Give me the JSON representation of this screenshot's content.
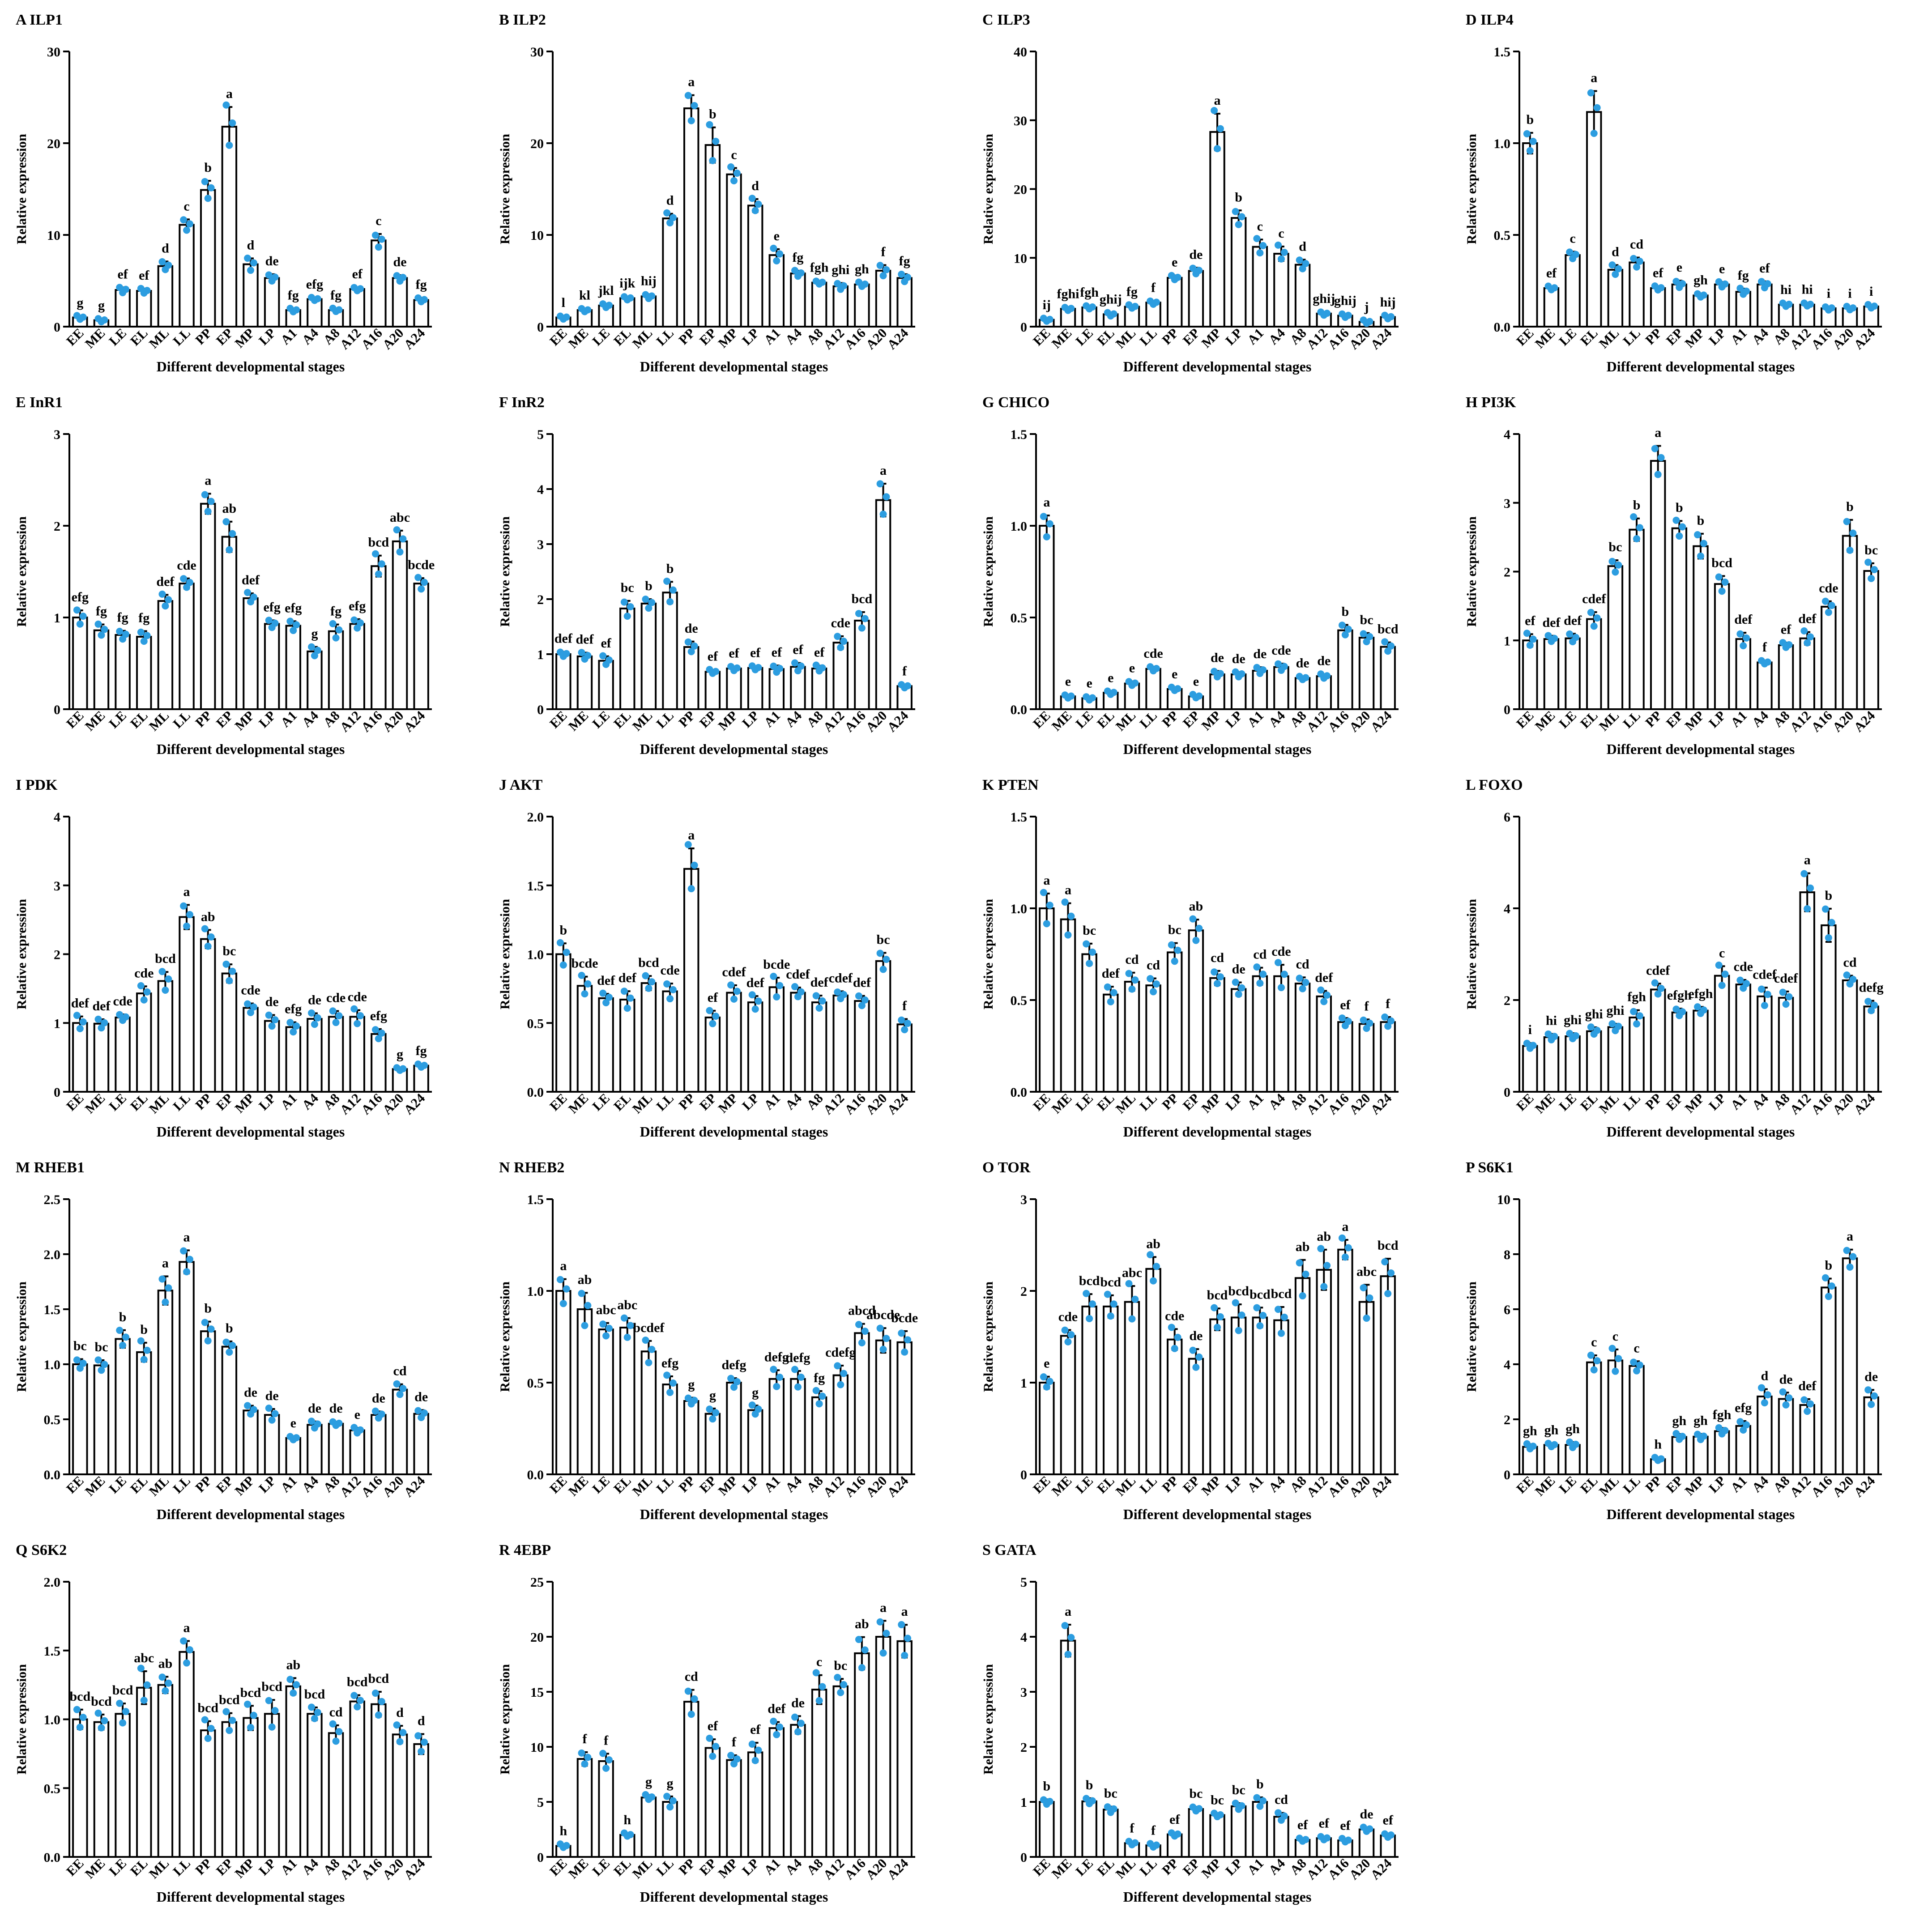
{
  "figure": {
    "xlabel": "Different developmental stages",
    "ylabel": "Relative expression",
    "colors": {
      "bar_fill": "#ffffff",
      "bar_stroke": "#000000",
      "dot": "#2c9de0",
      "text": "#000000"
    }
  },
  "chart_data": [
    {
      "panel": "A",
      "title": "A ILP1",
      "type": "bar",
      "categories": [
        "EE",
        "ME",
        "LE",
        "EL",
        "ML",
        "LL",
        "PP",
        "EP",
        "MP",
        "LP",
        "A1",
        "A4",
        "A8",
        "A12",
        "A16",
        "A20",
        "A24"
      ],
      "values": [
        1.0,
        0.7,
        4.0,
        3.9,
        6.6,
        11.1,
        14.9,
        21.8,
        6.8,
        5.3,
        1.8,
        3.0,
        1.8,
        4.1,
        9.4,
        5.3,
        2.9
      ],
      "letters": [
        "g",
        "g",
        "ef",
        "ef",
        "d",
        "c",
        "b",
        "a",
        "d",
        "de",
        "fg",
        "efg",
        "fg",
        "ef",
        "c",
        "de",
        "fg"
      ],
      "ylim": [
        0,
        30
      ],
      "yticks": [
        0,
        10,
        20,
        30
      ]
    },
    {
      "panel": "B",
      "title": "B ILP2",
      "type": "bar",
      "categories": [
        "EE",
        "ME",
        "LE",
        "EL",
        "ML",
        "LL",
        "PP",
        "EP",
        "MP",
        "LP",
        "A1",
        "A4",
        "A8",
        "A12",
        "A16",
        "A20",
        "A24"
      ],
      "values": [
        1.0,
        1.8,
        2.3,
        3.1,
        3.3,
        11.8,
        23.8,
        19.8,
        16.6,
        13.2,
        7.8,
        5.8,
        4.8,
        4.4,
        4.6,
        6.1,
        5.3
      ],
      "letters": [
        "l",
        "kl",
        "jkl",
        "ijk",
        "hij",
        "d",
        "a",
        "b",
        "c",
        "d",
        "e",
        "fg",
        "fgh",
        "ghi",
        "gh",
        "f",
        "fg"
      ],
      "ylim": [
        0,
        30
      ],
      "yticks": [
        0,
        10,
        20,
        30
      ]
    },
    {
      "panel": "C",
      "title": "C ILP3",
      "type": "bar",
      "categories": [
        "EE",
        "ME",
        "LE",
        "EL",
        "ML",
        "LL",
        "PP",
        "EP",
        "MP",
        "LP",
        "A1",
        "A4",
        "A8",
        "A12",
        "A16",
        "A20",
        "A24"
      ],
      "values": [
        1.0,
        2.6,
        2.8,
        1.8,
        2.9,
        3.5,
        7.1,
        8.1,
        28.3,
        15.8,
        11.6,
        10.6,
        9.0,
        1.9,
        1.6,
        0.7,
        1.4
      ],
      "letters": [
        "ij",
        "fghi",
        "fgh",
        "ghij",
        "fg",
        "f",
        "e",
        "de",
        "a",
        "b",
        "c",
        "c",
        "d",
        "ghij",
        "ghij",
        "j",
        "hij"
      ],
      "ylim": [
        0,
        40
      ],
      "yticks": [
        0,
        10,
        20,
        30,
        40
      ]
    },
    {
      "panel": "D",
      "title": "D ILP4",
      "type": "bar",
      "categories": [
        "EE",
        "ME",
        "LE",
        "EL",
        "ML",
        "LL",
        "PP",
        "EP",
        "MP",
        "LP",
        "A1",
        "A4",
        "A8",
        "A12",
        "A16",
        "A20",
        "A24"
      ],
      "values": [
        1.0,
        0.21,
        0.39,
        1.17,
        0.31,
        0.35,
        0.21,
        0.23,
        0.17,
        0.23,
        0.19,
        0.23,
        0.12,
        0.12,
        0.1,
        0.1,
        0.11
      ],
      "letters": [
        "b",
        "ef",
        "c",
        "a",
        "d",
        "cd",
        "ef",
        "e",
        "gh",
        "e",
        "fg",
        "ef",
        "hi",
        "hi",
        "i",
        "i",
        "i"
      ],
      "ylim": [
        0,
        1.5
      ],
      "yticks": [
        0.0,
        0.5,
        1.0,
        1.5
      ]
    },
    {
      "panel": "E",
      "title": "E InR1",
      "type": "bar",
      "categories": [
        "EE",
        "ME",
        "LE",
        "EL",
        "ML",
        "LL",
        "PP",
        "EP",
        "MP",
        "LP",
        "A1",
        "A4",
        "A8",
        "A12",
        "A16",
        "A20",
        "A24"
      ],
      "values": [
        1.0,
        0.86,
        0.81,
        0.79,
        1.18,
        1.37,
        2.24,
        1.88,
        1.21,
        0.93,
        0.91,
        0.63,
        0.85,
        0.93,
        1.56,
        1.83,
        1.37
      ],
      "letters": [
        "efg",
        "fg",
        "fg",
        "fg",
        "def",
        "cde",
        "a",
        "ab",
        "def",
        "efg",
        "efg",
        "g",
        "fg",
        "efg",
        "bcd",
        "abc",
        "bcde"
      ],
      "ylim": [
        0,
        3
      ],
      "yticks": [
        0,
        1,
        2,
        3
      ]
    },
    {
      "panel": "F",
      "title": "F InR2",
      "type": "bar",
      "categories": [
        "EE",
        "ME",
        "LE",
        "EL",
        "ML",
        "LL",
        "PP",
        "EP",
        "MP",
        "LP",
        "A1",
        "A4",
        "A8",
        "A12",
        "A16",
        "A20",
        "A24"
      ],
      "values": [
        1.0,
        0.96,
        0.88,
        1.83,
        1.92,
        2.12,
        1.13,
        0.68,
        0.74,
        0.75,
        0.73,
        0.77,
        0.74,
        1.21,
        1.61,
        3.8,
        0.42
      ],
      "letters": [
        "def",
        "def",
        "ef",
        "bc",
        "b",
        "b",
        "de",
        "ef",
        "ef",
        "ef",
        "ef",
        "ef",
        "ef",
        "cde",
        "bcd",
        "a",
        "f"
      ],
      "ylim": [
        0,
        5
      ],
      "yticks": [
        0,
        1,
        2,
        3,
        4,
        5
      ]
    },
    {
      "panel": "G",
      "title": "G CHICO",
      "type": "bar",
      "categories": [
        "EE",
        "ME",
        "LE",
        "EL",
        "ML",
        "LL",
        "PP",
        "EP",
        "MP",
        "LP",
        "A1",
        "A4",
        "A8",
        "A12",
        "A16",
        "A20",
        "A24"
      ],
      "values": [
        1.0,
        0.07,
        0.06,
        0.09,
        0.14,
        0.22,
        0.11,
        0.07,
        0.19,
        0.19,
        0.21,
        0.23,
        0.17,
        0.18,
        0.43,
        0.39,
        0.34
      ],
      "letters": [
        "a",
        "e",
        "e",
        "e",
        "e",
        "cde",
        "e",
        "e",
        "de",
        "de",
        "de",
        "cde",
        "de",
        "de",
        "b",
        "bc",
        "bcd"
      ],
      "ylim": [
        0,
        1.5
      ],
      "yticks": [
        0.0,
        0.5,
        1.0,
        1.5
      ]
    },
    {
      "panel": "H",
      "title": "H PI3K",
      "type": "bar",
      "categories": [
        "EE",
        "ME",
        "LE",
        "EL",
        "ML",
        "LL",
        "PP",
        "EP",
        "MP",
        "LP",
        "A1",
        "A4",
        "A8",
        "A12",
        "A16",
        "A20",
        "A24"
      ],
      "values": [
        1.0,
        1.02,
        1.03,
        1.31,
        2.08,
        2.61,
        3.61,
        2.63,
        2.37,
        1.82,
        1.02,
        0.68,
        0.93,
        1.03,
        1.49,
        2.52,
        2.01
      ],
      "letters": [
        "ef",
        "def",
        "def",
        "cdef",
        "bc",
        "b",
        "a",
        "b",
        "b",
        "bcd",
        "def",
        "f",
        "ef",
        "def",
        "cde",
        "b",
        "bc"
      ],
      "ylim": [
        0,
        4
      ],
      "yticks": [
        0,
        1,
        2,
        3,
        4
      ]
    },
    {
      "panel": "I",
      "title": "I PDK",
      "type": "bar",
      "categories": [
        "EE",
        "ME",
        "LE",
        "EL",
        "ML",
        "LL",
        "PP",
        "EP",
        "MP",
        "LP",
        "A1",
        "A4",
        "A8",
        "A12",
        "A16",
        "A20",
        "A24"
      ],
      "values": [
        1.0,
        0.99,
        1.08,
        1.43,
        1.61,
        2.54,
        2.22,
        1.72,
        1.22,
        1.03,
        0.94,
        1.06,
        1.09,
        1.09,
        0.84,
        0.33,
        0.38
      ],
      "letters": [
        "def",
        "def",
        "cde",
        "cde",
        "bcd",
        "a",
        "ab",
        "bc",
        "cde",
        "de",
        "efg",
        "de",
        "cde",
        "cde",
        "efg",
        "g",
        "fg"
      ],
      "ylim": [
        0,
        4
      ],
      "yticks": [
        0,
        1,
        2,
        3,
        4
      ]
    },
    {
      "panel": "J",
      "title": "J AKT",
      "type": "bar",
      "categories": [
        "EE",
        "ME",
        "LE",
        "EL",
        "ML",
        "LL",
        "PP",
        "EP",
        "MP",
        "LP",
        "A1",
        "A4",
        "A8",
        "A12",
        "A16",
        "A20",
        "A24"
      ],
      "values": [
        1.0,
        0.77,
        0.68,
        0.67,
        0.79,
        0.73,
        1.62,
        0.54,
        0.72,
        0.65,
        0.76,
        0.72,
        0.65,
        0.7,
        0.66,
        0.95,
        0.49
      ],
      "letters": [
        "b",
        "bcde",
        "def",
        "def",
        "bcd",
        "cde",
        "a",
        "ef",
        "cdef",
        "def",
        "bcde",
        "cdef",
        "def",
        "cdef",
        "def",
        "bc",
        "f"
      ],
      "ylim": [
        0,
        2
      ],
      "yticks": [
        0.0,
        0.5,
        1.0,
        1.5,
        2.0
      ]
    },
    {
      "panel": "K",
      "title": "K PTEN",
      "type": "bar",
      "categories": [
        "EE",
        "ME",
        "LE",
        "EL",
        "ML",
        "LL",
        "PP",
        "EP",
        "MP",
        "LP",
        "A1",
        "A4",
        "A8",
        "A12",
        "A16",
        "A20",
        "A24"
      ],
      "values": [
        1.0,
        0.94,
        0.75,
        0.53,
        0.6,
        0.58,
        0.76,
        0.88,
        0.62,
        0.56,
        0.63,
        0.63,
        0.59,
        0.52,
        0.38,
        0.37,
        0.38
      ],
      "letters": [
        "a",
        "a",
        "bc",
        "def",
        "cd",
        "cd",
        "bc",
        "ab",
        "cd",
        "de",
        "cd",
        "cde",
        "cd",
        "def",
        "ef",
        "f",
        "f"
      ],
      "ylim": [
        0,
        1.5
      ],
      "yticks": [
        0.0,
        0.5,
        1.0,
        1.5
      ]
    },
    {
      "panel": "L",
      "title": "L FOXO",
      "type": "bar",
      "categories": [
        "EE",
        "ME",
        "LE",
        "EL",
        "ML",
        "LL",
        "PP",
        "EP",
        "MP",
        "LP",
        "A1",
        "A4",
        "A8",
        "A12",
        "A16",
        "A20",
        "A24"
      ],
      "values": [
        1.0,
        1.19,
        1.21,
        1.32,
        1.41,
        1.62,
        2.23,
        1.73,
        1.77,
        2.53,
        2.34,
        2.08,
        2.05,
        4.35,
        3.63,
        2.43,
        1.86
      ],
      "letters": [
        "i",
        "hi",
        "ghi",
        "ghi",
        "ghi",
        "fgh",
        "cdef",
        "efgh",
        "efgh",
        "c",
        "cde",
        "cdef",
        "cdef",
        "a",
        "b",
        "cd",
        "defg"
      ],
      "ylim": [
        0,
        6
      ],
      "yticks": [
        0,
        2,
        4,
        6
      ]
    },
    {
      "panel": "M",
      "title": "M RHEB1",
      "type": "bar",
      "categories": [
        "EE",
        "ME",
        "LE",
        "EL",
        "ML",
        "LL",
        "PP",
        "EP",
        "MP",
        "LP",
        "A1",
        "A4",
        "A8",
        "A12",
        "A16",
        "A20",
        "A24"
      ],
      "values": [
        1.0,
        0.99,
        1.23,
        1.11,
        1.67,
        1.93,
        1.3,
        1.16,
        0.58,
        0.54,
        0.33,
        0.45,
        0.46,
        0.4,
        0.54,
        0.77,
        0.55
      ],
      "letters": [
        "bc",
        "bc",
        "b",
        "b",
        "a",
        "a",
        "b",
        "b",
        "de",
        "de",
        "e",
        "de",
        "de",
        "e",
        "de",
        "cd",
        "de"
      ],
      "ylim": [
        0,
        2.5
      ],
      "yticks": [
        0.0,
        0.5,
        1.0,
        1.5,
        2.0,
        2.5
      ]
    },
    {
      "panel": "N",
      "title": "N RHEB2",
      "type": "bar",
      "categories": [
        "EE",
        "ME",
        "LE",
        "EL",
        "ML",
        "LL",
        "PP",
        "EP",
        "MP",
        "LP",
        "A1",
        "A4",
        "A8",
        "A12",
        "A16",
        "A20",
        "A24"
      ],
      "values": [
        1.0,
        0.9,
        0.79,
        0.8,
        0.67,
        0.49,
        0.4,
        0.33,
        0.5,
        0.35,
        0.52,
        0.52,
        0.42,
        0.54,
        0.77,
        0.73,
        0.72
      ],
      "letters": [
        "a",
        "ab",
        "abc",
        "abc",
        "bcdef",
        "efg",
        "g",
        "g",
        "defg",
        "g",
        "defg",
        "defg",
        "fg",
        "cdefg",
        "abcd",
        "abcde",
        "bcde"
      ],
      "ylim": [
        0,
        1.5
      ],
      "yticks": [
        0.0,
        0.5,
        1.0,
        1.5
      ]
    },
    {
      "panel": "O",
      "title": "O TOR",
      "type": "bar",
      "categories": [
        "EE",
        "ME",
        "LE",
        "EL",
        "ML",
        "LL",
        "PP",
        "EP",
        "MP",
        "LP",
        "A1",
        "A4",
        "A8",
        "A12",
        "A16",
        "A20",
        "A24"
      ],
      "values": [
        1.0,
        1.51,
        1.83,
        1.83,
        1.88,
        2.24,
        1.47,
        1.26,
        1.69,
        1.71,
        1.71,
        1.68,
        2.14,
        2.23,
        2.45,
        1.88,
        2.16
      ],
      "letters": [
        "e",
        "cde",
        "bcd",
        "bcd",
        "abc",
        "ab",
        "cde",
        "de",
        "bcd",
        "bcd",
        "bcd",
        "bcd",
        "ab",
        "ab",
        "a",
        "abc",
        "bcd"
      ],
      "ylim": [
        0,
        3
      ],
      "yticks": [
        0,
        1,
        2,
        3
      ]
    },
    {
      "panel": "P",
      "title": "P S6K1",
      "type": "bar",
      "categories": [
        "EE",
        "ME",
        "LE",
        "EL",
        "ML",
        "LL",
        "PP",
        "EP",
        "MP",
        "LP",
        "A1",
        "A4",
        "A8",
        "A12",
        "A16",
        "A20",
        "A24"
      ],
      "values": [
        1.0,
        1.07,
        1.07,
        4.07,
        4.14,
        3.94,
        0.55,
        1.36,
        1.37,
        1.57,
        1.76,
        2.83,
        2.74,
        2.52,
        6.79,
        7.85,
        2.8
      ],
      "letters": [
        "gh",
        "gh",
        "gh",
        "c",
        "c",
        "c",
        "h",
        "gh",
        "gh",
        "fgh",
        "efg",
        "d",
        "de",
        "def",
        "b",
        "a",
        "de"
      ],
      "ylim": [
        0,
        10
      ],
      "yticks": [
        0,
        2,
        4,
        6,
        8,
        10
      ]
    },
    {
      "panel": "Q",
      "title": "Q S6K2",
      "type": "bar",
      "categories": [
        "EE",
        "ME",
        "LE",
        "EL",
        "ML",
        "LL",
        "PP",
        "EP",
        "MP",
        "LP",
        "A1",
        "A4",
        "A8",
        "A12",
        "A16",
        "A20",
        "A24"
      ],
      "values": [
        1.0,
        0.98,
        1.04,
        1.23,
        1.25,
        1.49,
        0.92,
        0.98,
        1.01,
        1.04,
        1.24,
        1.04,
        0.9,
        1.13,
        1.11,
        0.89,
        0.82
      ],
      "letters": [
        "bcd",
        "bcd",
        "bcd",
        "abc",
        "ab",
        "a",
        "bcd",
        "bcd",
        "bcd",
        "bcd",
        "ab",
        "bcd",
        "cd",
        "bcd",
        "bcd",
        "d",
        "d"
      ],
      "ylim": [
        0,
        2
      ],
      "yticks": [
        0.0,
        0.5,
        1.0,
        1.5,
        2.0
      ]
    },
    {
      "panel": "R",
      "title": "R 4EBP",
      "type": "bar",
      "categories": [
        "EE",
        "ME",
        "LE",
        "EL",
        "ML",
        "LL",
        "PP",
        "EP",
        "MP",
        "LP",
        "A1",
        "A4",
        "A8",
        "A12",
        "A16",
        "A20",
        "A24"
      ],
      "values": [
        1.0,
        8.9,
        8.7,
        2.0,
        5.4,
        5.0,
        14.1,
        9.9,
        8.8,
        9.5,
        11.7,
        12.0,
        15.2,
        15.5,
        18.5,
        20.0,
        19.6
      ],
      "letters": [
        "h",
        "f",
        "f",
        "h",
        "g",
        "g",
        "cd",
        "ef",
        "f",
        "ef",
        "def",
        "de",
        "c",
        "bc",
        "ab",
        "a",
        "a"
      ],
      "ylim": [
        0,
        25
      ],
      "yticks": [
        0,
        5,
        10,
        15,
        20,
        25
      ]
    },
    {
      "panel": "S",
      "title": "S GATA",
      "type": "bar",
      "categories": [
        "EE",
        "ME",
        "LE",
        "EL",
        "ML",
        "LL",
        "PP",
        "EP",
        "MP",
        "LP",
        "A1",
        "A4",
        "A8",
        "A12",
        "A16",
        "A20",
        "A24"
      ],
      "values": [
        1.0,
        3.93,
        1.01,
        0.86,
        0.25,
        0.21,
        0.41,
        0.87,
        0.76,
        0.92,
        1.0,
        0.73,
        0.31,
        0.34,
        0.3,
        0.5,
        0.39
      ],
      "letters": [
        "b",
        "a",
        "b",
        "bc",
        "f",
        "f",
        "ef",
        "bc",
        "bc",
        "bc",
        "b",
        "cd",
        "ef",
        "ef",
        "ef",
        "de",
        "ef"
      ],
      "ylim": [
        0,
        5
      ],
      "yticks": [
        0,
        1,
        2,
        3,
        4,
        5
      ]
    }
  ]
}
